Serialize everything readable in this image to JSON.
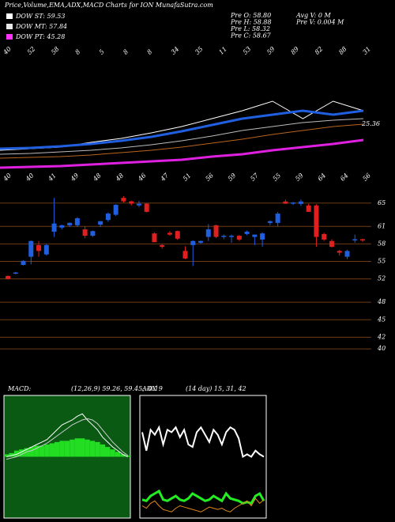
{
  "chart_data": [
    {
      "type": "candlestick",
      "title": "Price,Volume,EMA,ADX,MACD Charts for ION MunafaSutra.com",
      "legend": [
        {
          "label": "DOW ST: 59.53",
          "color": "#ffffff"
        },
        {
          "label": "DOW MT: 57.84",
          "color": "#e8e8e8"
        },
        {
          "label": "DOW PT: 45.28",
          "color": "#ff33ff"
        }
      ],
      "info": [
        "Pre  O: 58.80",
        "Pre  H: 58.88",
        "Pre  L: 58.32",
        "Pre  C: 58.67",
        "Avg V: 0  M",
        "Pre  V: 0.004  M"
      ],
      "open": [
        52.5,
        52.9,
        54.4,
        55.8,
        57.8,
        56.2,
        60.1,
        60.8,
        61.2,
        61.2,
        60.5,
        59.4,
        61.3,
        62.1,
        63.0,
        65.9,
        65.3,
        64.6,
        64.9,
        59.8,
        57.8,
        59.9,
        60.2,
        56.8,
        57.8,
        58.2,
        59.2,
        61.2,
        59.2,
        59.2,
        59.4,
        59.7,
        59.2,
        58.75,
        61.6,
        61.6,
        65.27,
        65.0,
        64.86,
        64.6,
        64.6,
        59.7,
        58.5,
        56.8,
        55.8,
        58.6,
        58.8
      ],
      "high": [
        52.6,
        53.2,
        55.2,
        58.6,
        58.5,
        58.0,
        65.9,
        61.3,
        61.7,
        62.6,
        61.0,
        60.3,
        61.9,
        63.4,
        64.8,
        66.2,
        65.4,
        65.4,
        65.0,
        60.0,
        58.0,
        60.2,
        60.3,
        57.6,
        58.6,
        58.6,
        61.4,
        61.3,
        59.6,
        59.6,
        59.5,
        60.3,
        59.6,
        60.0,
        62.0,
        63.5,
        65.6,
        65.2,
        65.6,
        64.9,
        64.8,
        59.9,
        58.8,
        57.0,
        57.0,
        59.6,
        58.88
      ],
      "low": [
        51.9,
        52.8,
        54.3,
        54.5,
        55.8,
        56.0,
        59.2,
        60.5,
        60.9,
        60.9,
        59.0,
        59.2,
        60.9,
        61.8,
        62.8,
        65.1,
        64.6,
        64.3,
        63.4,
        58.3,
        57.2,
        59.4,
        58.7,
        55.4,
        54.2,
        58.0,
        58.5,
        59.0,
        58.8,
        58.2,
        58.5,
        59.5,
        57.8,
        57.5,
        61.2,
        61.0,
        64.86,
        64.7,
        64.5,
        63.5,
        57.5,
        58.5,
        57.4,
        56.0,
        55.4,
        58.2,
        58.32
      ],
      "close": [
        52.0,
        53.1,
        55.1,
        58.5,
        56.8,
        57.8,
        61.5,
        61.2,
        61.6,
        62.4,
        59.4,
        60.2,
        61.9,
        63.2,
        64.7,
        65.3,
        64.9,
        64.9,
        63.5,
        58.3,
        57.5,
        59.6,
        58.9,
        55.5,
        58.5,
        58.5,
        60.5,
        59.2,
        59.4,
        59.4,
        58.75,
        60.1,
        59.6,
        59.8,
        61.9,
        63.2,
        64.9,
        65.1,
        65.27,
        63.5,
        59.2,
        58.75,
        57.5,
        56.5,
        56.8,
        58.8,
        58.67
      ],
      "up_color": "#1f5fe0",
      "down_color": "#e02020",
      "ylim": [
        38.8,
        66.6
      ],
      "yticks": [
        65,
        61,
        58,
        55,
        52,
        48,
        45,
        42,
        40
      ],
      "grid": true,
      "grid_color": "#6b3a14"
    },
    {
      "type": "line",
      "label_rows": [
        [
          "40",
          "52",
          "58",
          "8",
          "5",
          "8",
          "8",
          "34",
          "35",
          "11",
          "53",
          "59",
          "89",
          "82",
          "88",
          "31"
        ],
        [
          "40",
          "40",
          "41",
          "49",
          "48",
          "48",
          "46",
          "47",
          "51",
          "56",
          "59",
          "57",
          "55",
          "59",
          "64",
          "64",
          "56"
        ]
      ],
      "annotations": [
        "25.36"
      ],
      "ylim": [
        0,
        100
      ],
      "series": [
        {
          "name": "EMA price",
          "color": "#ffffff",
          "width": 1,
          "values": [
            25,
            27,
            29,
            35,
            40,
            47,
            55,
            65,
            75,
            87,
            65,
            87,
            75
          ]
        },
        {
          "name": "EMA short",
          "color": "#1f5fe0",
          "width": 3,
          "values": [
            27,
            28,
            30,
            33,
            37,
            42,
            49,
            57,
            65,
            70,
            75,
            70,
            75
          ]
        },
        {
          "name": "EMA mid",
          "color": "#bbbbbb",
          "width": 1,
          "values": [
            20,
            21,
            23,
            25,
            28,
            32,
            37,
            43,
            50,
            55,
            60,
            63,
            65
          ]
        },
        {
          "name": "EMA long",
          "color": "#b8651e",
          "width": 1,
          "values": [
            15,
            16,
            17,
            19,
            22,
            25,
            29,
            34,
            39,
            45,
            50,
            55,
            58
          ]
        },
        {
          "name": "EMA very long",
          "color": "#e020e0",
          "width": 3,
          "values": [
            3,
            4,
            5,
            7,
            9,
            11,
            13,
            17,
            20,
            25,
            29,
            33,
            38
          ]
        }
      ]
    },
    {
      "type": "macd",
      "title": "MACD:",
      "subtitle": "(12,26,9) 59.26, 59.45, -0.19",
      "ylim": [
        -50,
        50
      ],
      "histogram": {
        "color": "#22dd22",
        "values": [
          2,
          3,
          5,
          6,
          7,
          8,
          9,
          9,
          10,
          11,
          12,
          13,
          13,
          14,
          15,
          15,
          14,
          13,
          12,
          10,
          8,
          6,
          4,
          2,
          1
        ]
      },
      "series": [
        {
          "name": "MACD",
          "color": "#ffffff",
          "values": [
            0,
            1,
            2,
            4,
            6,
            8,
            10,
            12,
            14,
            18,
            22,
            26,
            28,
            30,
            33,
            35,
            30,
            26,
            22,
            16,
            12,
            8,
            5,
            2,
            0
          ]
        },
        {
          "name": "Signal",
          "color": "#cccccc",
          "values": [
            -2,
            -1,
            0,
            2,
            4,
            5,
            7,
            9,
            11,
            14,
            17,
            20,
            23,
            26,
            28,
            30,
            31,
            30,
            27,
            22,
            17,
            12,
            8,
            4,
            1
          ]
        }
      ]
    },
    {
      "type": "adx",
      "title": "ADX",
      "subtitle": "(14 day) 15, 31, 42",
      "ylim": [
        0,
        100
      ],
      "series": [
        {
          "name": "ADX",
          "color": "#ffffff",
          "width": 2,
          "values": [
            70,
            55,
            72,
            68,
            74,
            60,
            72,
            70,
            74,
            66,
            72,
            60,
            58,
            70,
            74,
            68,
            62,
            72,
            68,
            60,
            70,
            74,
            72,
            65,
            50,
            52,
            50,
            55,
            52,
            50
          ]
        },
        {
          "name": "+DI",
          "color": "#22ee22",
          "width": 3,
          "values": [
            15,
            14,
            18,
            20,
            22,
            15,
            14,
            16,
            18,
            15,
            14,
            16,
            20,
            18,
            16,
            14,
            15,
            18,
            16,
            14,
            20,
            16,
            15,
            14,
            12,
            13,
            12,
            18,
            20,
            14
          ]
        },
        {
          "name": "-DI",
          "color": "#e08a20",
          "width": 1,
          "values": [
            10,
            8,
            12,
            14,
            10,
            7,
            6,
            5,
            8,
            10,
            9,
            8,
            7,
            6,
            5,
            7,
            9,
            8,
            7,
            8,
            6,
            5,
            8,
            10,
            12,
            14,
            10,
            16,
            12,
            15
          ]
        }
      ]
    }
  ]
}
